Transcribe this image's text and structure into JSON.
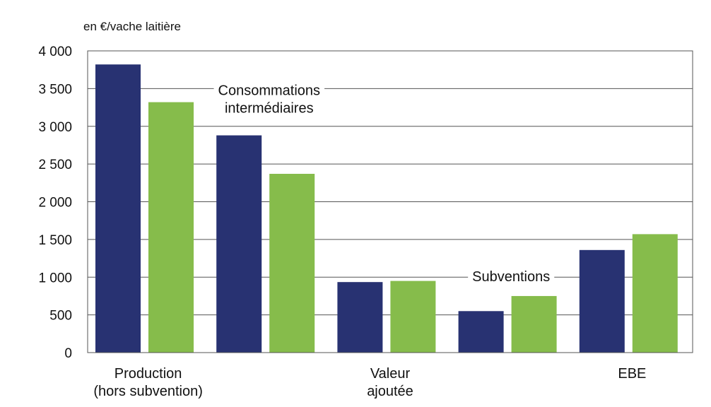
{
  "chart_data": {
    "type": "bar",
    "ylabel": "en €/vache laitière",
    "ylim": [
      0,
      4000
    ],
    "yticks": [
      0,
      500,
      1000,
      1500,
      2000,
      2500,
      3000,
      3500,
      4000
    ],
    "ytick_labels": [
      "0",
      "500",
      "1 000",
      "1 500",
      "2 000",
      "2 500",
      "3 000",
      "3 500",
      "4 000"
    ],
    "grid": "horizontal",
    "legend": "none",
    "categories": [
      {
        "lines": [
          "Production",
          "(hors subvention)"
        ],
        "placement": "below-axis"
      },
      {
        "lines": [
          "Consommations",
          "intermédiaires"
        ],
        "placement": "in-plot"
      },
      {
        "lines": [
          "Valeur",
          "ajoutée"
        ],
        "placement": "below-axis"
      },
      {
        "lines": [
          "Subventions"
        ],
        "placement": "in-plot"
      },
      {
        "lines": [
          "EBE"
        ],
        "placement": "below-axis"
      }
    ],
    "series": [
      {
        "values": [
          3820,
          2880,
          935,
          550,
          1360
        ],
        "color": "#283272"
      },
      {
        "values": [
          3320,
          2370,
          950,
          750,
          1570
        ],
        "color": "#86BC4B"
      }
    ]
  }
}
